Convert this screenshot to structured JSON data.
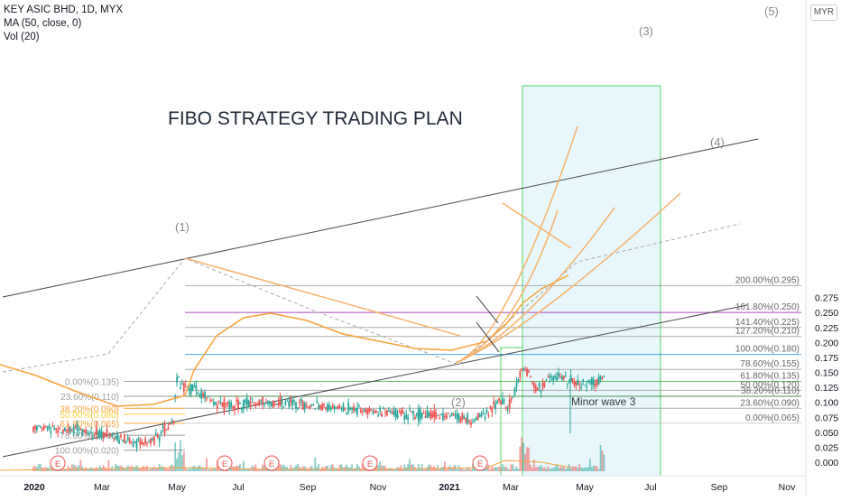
{
  "legend": {
    "symbol": "KEY ASIC BHD, 1D, MYX",
    "ma": "MA (50, close, 0)",
    "vol": "Vol (20)"
  },
  "currency_badge": "MYR",
  "chart_data": {
    "type": "candlestick",
    "title": "FIBO STRATEGY TRADING PLAN",
    "x_axis": {
      "ticks": [
        "2020",
        "Mar",
        "May",
        "Jul",
        "Sep",
        "Nov",
        "2021",
        "Mar",
        "May",
        "Jul",
        "Sep",
        "Nov"
      ],
      "bold_ticks": [
        "2020",
        "2021"
      ]
    },
    "y_axis": {
      "range": [
        -0.01,
        0.305
      ],
      "ticks": [
        "0.000",
        "0.025",
        "0.050",
        "0.075",
        "0.100",
        "0.125",
        "0.150",
        "0.175",
        "0.200",
        "0.225",
        "0.250",
        "0.275"
      ]
    },
    "fib_retracement_1": {
      "levels": [
        {
          "label": "0.00%(0.135)",
          "value": 0.135
        },
        {
          "label": "23.60%(0.110)",
          "value": 0.11
        },
        {
          "label": "38.20%(0.090)",
          "value": 0.09
        },
        {
          "label": "50.00%(0.080)",
          "value": 0.08
        },
        {
          "label": "61.80%(0.065)",
          "value": 0.065
        },
        {
          "label": "78.60%(0.045)",
          "value": 0.045
        },
        {
          "label": "100.00%(0.020)",
          "value": 0.02
        }
      ]
    },
    "fib_retracement_2": {
      "levels": [
        {
          "label": "200.00%(0.295)",
          "value": 0.295
        },
        {
          "label": "161.80%(0.250)",
          "value": 0.25
        },
        {
          "label": "141.40%(0.225)",
          "value": 0.225
        },
        {
          "label": "127.20%(0.210)",
          "value": 0.21
        },
        {
          "label": "100.00%(0.180)",
          "value": 0.18
        },
        {
          "label": "78.60%(0.155)",
          "value": 0.155
        },
        {
          "label": "61.80%(0.135)",
          "value": 0.135
        },
        {
          "label": "50.00%(0.120)",
          "value": 0.12
        },
        {
          "label": "38.20%(0.110)",
          "value": 0.11
        },
        {
          "label": "23.60%(0.090)",
          "value": 0.09
        },
        {
          "label": "0.00%(0.065)",
          "value": 0.065
        }
      ]
    },
    "wave_labels": [
      "(1)",
      "(2)",
      "(3)",
      "(4)",
      "(5)"
    ],
    "annotations": [
      "Minor wave 3"
    ],
    "earnings_marker": "E",
    "colors": {
      "candle_up": "#26a69a",
      "candle_down": "#ef5350",
      "ma_line": "#f7a23a",
      "channel": "#4a4a4a",
      "fan": "#f7b16b",
      "projection_box": "#4cd964",
      "projection_fill": "#e8f7fb",
      "fib_161": "#9c27b0",
      "fib_100": "#2196f3",
      "fib_61": "#4caf50",
      "fib_gray": "#9e9e9e",
      "earnings": "#ef5350"
    }
  }
}
